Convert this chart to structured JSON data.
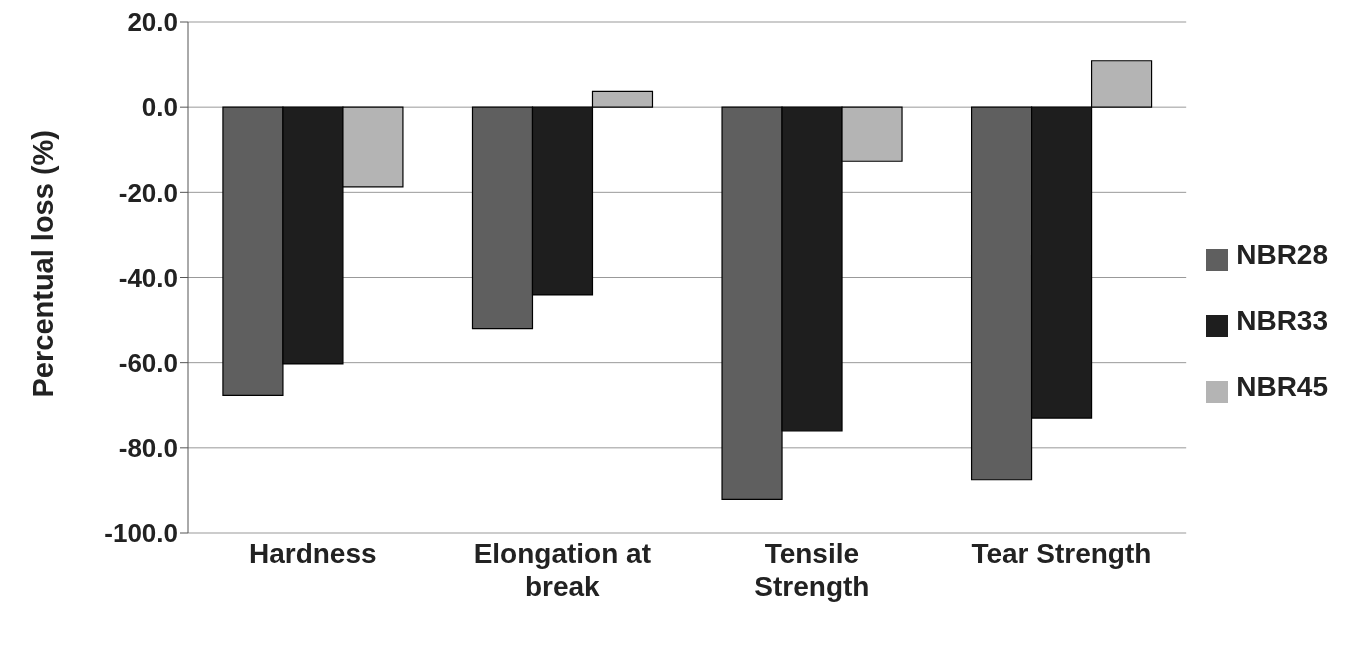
{
  "chart_data": {
    "type": "bar",
    "ylabel": "Percentual loss (%)",
    "categories": [
      "Hardness",
      "Elongation at break",
      "Tensile Strength",
      "Tear Strength"
    ],
    "series": [
      {
        "name": "NBR28",
        "color": "#5f5f5f",
        "values": [
          -67.7,
          -52.0,
          -92.1,
          -87.5
        ]
      },
      {
        "name": "NBR33",
        "color": "#1e1e1e",
        "values": [
          -60.3,
          -44.1,
          -76.0,
          -73.0
        ]
      },
      {
        "name": "NBR45",
        "color": "#b4b4b4",
        "values": [
          -18.7,
          3.7,
          -12.7,
          10.9
        ]
      }
    ],
    "ylim": [
      -100,
      20
    ],
    "yticks": [
      {
        "value": -100,
        "label": "-100.0"
      },
      {
        "value": -80,
        "label": "-80.0"
      },
      {
        "value": -60,
        "label": "-60.0"
      },
      {
        "value": -40,
        "label": "-40.0"
      },
      {
        "value": -20,
        "label": "-20.0"
      },
      {
        "value": 0,
        "label": "0.0"
      },
      {
        "value": 20,
        "label": "20.0"
      }
    ],
    "grid": "y",
    "legend": "right"
  }
}
